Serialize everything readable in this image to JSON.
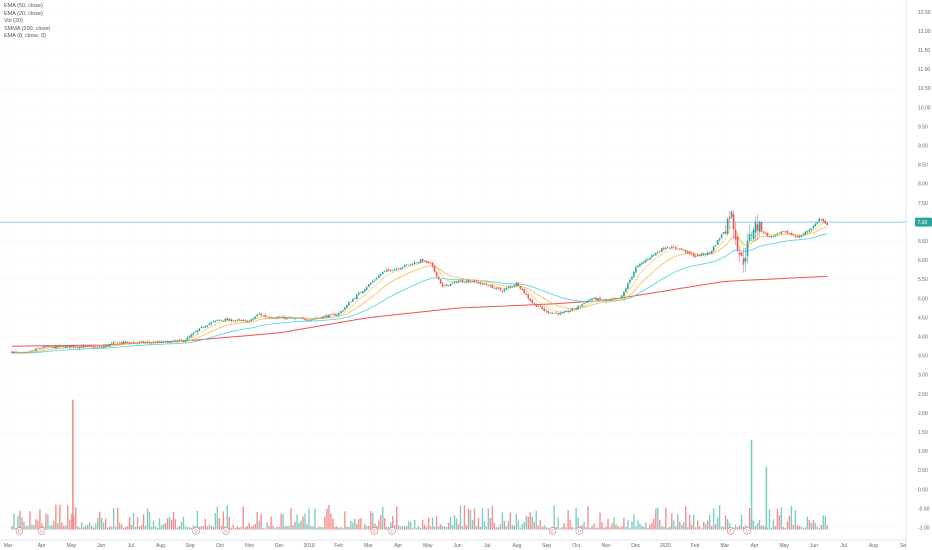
{
  "legend": [
    "EMA (50, close)",
    "EMA (20, close)",
    "Vol (20)",
    "SMMA (200, close)",
    "EMA (8, close, 0)"
  ],
  "colors": {
    "up": "#26a69a",
    "down": "#ef5350",
    "ema8": "#f5c451",
    "ema20": "#ffb74d",
    "ema50": "#4dd0e1",
    "smma200": "#ef5350",
    "level": "#64b5f6",
    "vol_up": "#80cbc4",
    "vol_down": "#f48f8f"
  },
  "chart_data": {
    "type": "candlestick",
    "y_ticks": [
      "12.50",
      "12.00",
      "11.50",
      "11.00",
      "10.50",
      "10.00",
      "9.50",
      "9.00",
      "8.50",
      "8.00",
      "7.50",
      "7.00",
      "6.50",
      "6.00",
      "5.50",
      "5.00",
      "4.50",
      "4.00",
      "3.50",
      "3.00",
      "2.50",
      "2.00",
      "1.50",
      "1.00",
      "0.50",
      "0.00",
      "-0.50",
      "-1.00"
    ],
    "ylim": [
      -1.2,
      12.75
    ],
    "x_ticks": [
      "Mar",
      "Apr",
      "May",
      "Jun",
      "Jul",
      "Aug",
      "Sep",
      "Oct",
      "Nov",
      "Dec",
      "2019",
      "Feb",
      "Mar",
      "Apr",
      "May",
      "Jun",
      "Jul",
      "Aug",
      "Sep",
      "Oct",
      "Nov",
      "Dec",
      "2020",
      "Feb",
      "Mar",
      "Apr",
      "May",
      "Jun",
      "Jul",
      "Aug",
      "Se"
    ],
    "xlim": [
      0,
      30.2
    ],
    "last_price": "7.00",
    "level_line": 7.0,
    "price_anchors": [
      [
        0,
        3.6
      ],
      [
        0.4,
        3.55
      ],
      [
        1,
        3.72
      ],
      [
        1.5,
        3.73
      ],
      [
        2,
        3.75
      ],
      [
        3,
        3.72
      ],
      [
        3.5,
        3.85
      ],
      [
        4,
        3.85
      ],
      [
        5,
        3.85
      ],
      [
        5.8,
        3.9
      ],
      [
        6.5,
        4.3
      ],
      [
        7,
        4.45
      ],
      [
        8,
        4.4
      ],
      [
        8.3,
        4.6
      ],
      [
        8.6,
        4.52
      ],
      [
        9,
        4.5
      ],
      [
        10,
        4.45
      ],
      [
        11,
        4.6
      ],
      [
        11.5,
        5.0
      ],
      [
        12,
        5.35
      ],
      [
        12.5,
        5.7
      ],
      [
        13,
        5.8
      ],
      [
        13.8,
        6.0
      ],
      [
        14.1,
        5.9
      ],
      [
        14.5,
        5.3
      ],
      [
        15,
        5.45
      ],
      [
        15.5,
        5.45
      ],
      [
        16,
        5.35
      ],
      [
        16.5,
        5.2
      ],
      [
        17,
        5.4
      ],
      [
        17.5,
        4.9
      ],
      [
        18,
        4.65
      ],
      [
        18.5,
        4.6
      ],
      [
        19,
        4.75
      ],
      [
        19.5,
        5.0
      ],
      [
        20,
        4.95
      ],
      [
        20.5,
        5.0
      ],
      [
        21,
        5.8
      ],
      [
        21.5,
        6.1
      ],
      [
        22,
        6.35
      ],
      [
        22.5,
        6.3
      ],
      [
        23,
        6.1
      ],
      [
        23.5,
        6.2
      ],
      [
        24,
        6.8
      ],
      [
        24.2,
        7.3
      ],
      [
        24.4,
        6.5
      ],
      [
        24.6,
        5.9
      ],
      [
        24.8,
        6.5
      ],
      [
        25,
        6.95
      ],
      [
        25.5,
        6.6
      ],
      [
        26,
        6.75
      ],
      [
        26.5,
        6.6
      ],
      [
        27,
        6.9
      ],
      [
        27.2,
        7.1
      ],
      [
        27.45,
        6.9
      ]
    ],
    "smma200_anchors": [
      [
        0,
        3.75
      ],
      [
        3,
        3.78
      ],
      [
        6,
        3.9
      ],
      [
        9,
        4.1
      ],
      [
        12,
        4.5
      ],
      [
        15,
        4.75
      ],
      [
        18,
        4.85
      ],
      [
        20,
        4.95
      ],
      [
        22,
        5.2
      ],
      [
        24,
        5.45
      ],
      [
        27.45,
        5.58
      ]
    ],
    "volume_spikes": [
      [
        2.05,
        2.35,
        "down"
      ],
      [
        24.9,
        1.3,
        "up"
      ],
      [
        25.4,
        0.6,
        "up"
      ]
    ],
    "event_labels": [
      [
        0.25,
        "E"
      ],
      [
        1.0,
        "D"
      ],
      [
        6.2,
        "D"
      ],
      [
        7.2,
        "D"
      ],
      [
        12.2,
        "E"
      ],
      [
        12.8,
        "D"
      ],
      [
        18.2,
        "E"
      ],
      [
        19.1,
        "D"
      ],
      [
        24.2,
        "E"
      ],
      [
        24.75,
        "D"
      ]
    ]
  }
}
